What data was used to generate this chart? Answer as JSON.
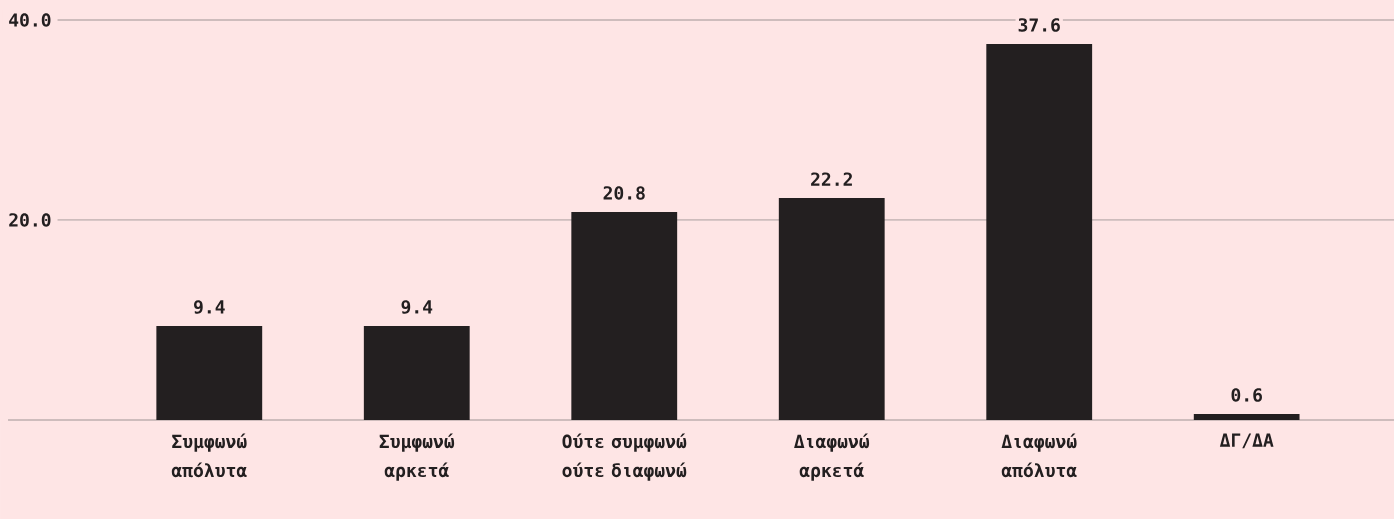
{
  "chart_data": {
    "type": "bar",
    "categories": [
      "Συμφωνώ απόλυτα",
      "Συμφωνώ αρκετά",
      "Ούτε συμφωνώ ούτε διαφωνώ",
      "Διαφωνώ αρκετά",
      "Διαφωνώ απόλυτα",
      "ΔΓ/ΔΑ"
    ],
    "values": [
      9.4,
      9.4,
      20.8,
      22.2,
      37.6,
      0.6
    ],
    "color": "#231f20",
    "ylim": [
      0,
      42
    ],
    "yticks": [
      {
        "value": 20,
        "label": "20.0"
      },
      {
        "value": 40,
        "label": "40.0"
      }
    ],
    "grid": "y",
    "data_labels": true
  }
}
